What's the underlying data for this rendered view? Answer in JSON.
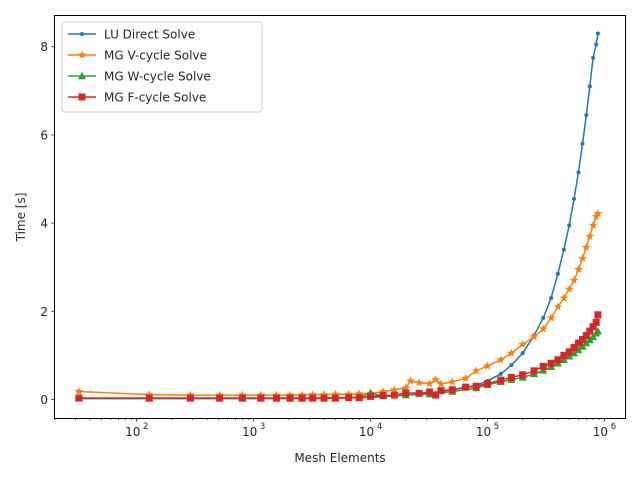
{
  "chart_data": {
    "type": "line",
    "xlabel": "Mesh Elements",
    "ylabel": "Time [s]",
    "xscale": "log",
    "xlim": [
      20,
      1500000
    ],
    "ylim": [
      -0.42,
      8.72
    ],
    "x_ticks": [
      {
        "value": 100,
        "label": "10",
        "exp": "2"
      },
      {
        "value": 1000,
        "label": "10",
        "exp": "3"
      },
      {
        "value": 10000,
        "label": "10",
        "exp": "4"
      },
      {
        "value": 100000,
        "label": "10",
        "exp": "5"
      },
      {
        "value": 1000000,
        "label": "10",
        "exp": "6"
      }
    ],
    "y_ticks": [
      {
        "value": 0,
        "label": "0"
      },
      {
        "value": 2,
        "label": "2"
      },
      {
        "value": 4,
        "label": "4"
      },
      {
        "value": 6,
        "label": "6"
      },
      {
        "value": 8,
        "label": "8"
      }
    ],
    "legend_position": "top-left",
    "series": [
      {
        "name": "LU Direct Solve",
        "color": "#1f77b4",
        "marker": "point",
        "x": [
          32,
          128,
          288,
          512,
          800,
          1152,
          1568,
          2048,
          2592,
          3200,
          5000,
          8000,
          12800,
          20000,
          32000,
          50000,
          80000,
          100000,
          130000,
          160000,
          200000,
          250000,
          300000,
          350000,
          400000,
          450000,
          500000,
          550000,
          600000,
          650000,
          700000,
          750000,
          800000,
          850000,
          880000
        ],
        "y": [
          0.02,
          0.02,
          0.02,
          0.02,
          0.02,
          0.02,
          0.02,
          0.02,
          0.02,
          0.02,
          0.03,
          0.04,
          0.06,
          0.1,
          0.15,
          0.22,
          0.32,
          0.42,
          0.58,
          0.78,
          1.05,
          1.45,
          1.85,
          2.3,
          2.85,
          3.4,
          3.95,
          4.55,
          5.15,
          5.8,
          6.45,
          7.1,
          7.75,
          8.05,
          8.3
        ]
      },
      {
        "name": "MG V-cycle Solve",
        "color": "#ff7f0e",
        "marker": "star",
        "x": [
          32,
          128,
          288,
          512,
          800,
          1152,
          1568,
          2048,
          2592,
          3200,
          4000,
          5000,
          6500,
          8000,
          10000,
          12800,
          16000,
          20000,
          22000,
          26000,
          32000,
          36000,
          40000,
          50000,
          65000,
          80000,
          100000,
          130000,
          160000,
          200000,
          250000,
          300000,
          350000,
          400000,
          450000,
          500000,
          550000,
          600000,
          650000,
          700000,
          750000,
          800000,
          850000,
          880000
        ],
        "y": [
          0.18,
          0.11,
          0.1,
          0.1,
          0.1,
          0.1,
          0.1,
          0.1,
          0.1,
          0.11,
          0.11,
          0.12,
          0.12,
          0.13,
          0.14,
          0.18,
          0.22,
          0.26,
          0.42,
          0.38,
          0.36,
          0.45,
          0.35,
          0.4,
          0.48,
          0.65,
          0.76,
          0.9,
          1.05,
          1.25,
          1.42,
          1.6,
          1.85,
          2.1,
          2.3,
          2.5,
          2.7,
          2.95,
          3.2,
          3.45,
          3.7,
          3.95,
          4.15,
          4.22
        ]
      },
      {
        "name": "MG W-cycle Solve",
        "color": "#2ca02c",
        "marker": "triangle",
        "x": [
          32,
          128,
          288,
          512,
          800,
          1152,
          1568,
          2048,
          2592,
          3200,
          5000,
          8000,
          10000,
          12800,
          20000,
          32000,
          50000,
          80000,
          100000,
          130000,
          160000,
          200000,
          250000,
          300000,
          350000,
          400000,
          450000,
          500000,
          550000,
          600000,
          650000,
          700000,
          750000,
          800000,
          850000,
          880000
        ],
        "y": [
          0.03,
          0.03,
          0.03,
          0.03,
          0.03,
          0.03,
          0.03,
          0.03,
          0.03,
          0.03,
          0.04,
          0.05,
          0.15,
          0.08,
          0.1,
          0.12,
          0.18,
          0.26,
          0.33,
          0.4,
          0.45,
          0.5,
          0.58,
          0.66,
          0.74,
          0.82,
          0.9,
          0.98,
          1.05,
          1.12,
          1.2,
          1.28,
          1.35,
          1.42,
          1.5,
          1.55
        ]
      },
      {
        "name": "MG F-cycle Solve",
        "color": "#d62728",
        "marker": "square",
        "x": [
          32,
          128,
          288,
          512,
          800,
          1152,
          1568,
          2048,
          2592,
          3200,
          4000,
          5000,
          6500,
          8000,
          10000,
          12800,
          16000,
          20000,
          26000,
          32000,
          36000,
          40000,
          50000,
          65000,
          80000,
          100000,
          130000,
          160000,
          200000,
          250000,
          300000,
          350000,
          400000,
          450000,
          500000,
          550000,
          600000,
          650000,
          700000,
          750000,
          800000,
          850000,
          880000
        ],
        "y": [
          0.03,
          0.03,
          0.03,
          0.03,
          0.03,
          0.03,
          0.03,
          0.03,
          0.03,
          0.03,
          0.03,
          0.03,
          0.04,
          0.04,
          0.07,
          0.09,
          0.1,
          0.15,
          0.14,
          0.17,
          0.1,
          0.2,
          0.22,
          0.28,
          0.3,
          0.36,
          0.44,
          0.5,
          0.56,
          0.65,
          0.75,
          0.82,
          0.9,
          1.0,
          1.08,
          1.18,
          1.28,
          1.36,
          1.45,
          1.55,
          1.65,
          1.75,
          1.92
        ]
      }
    ]
  }
}
